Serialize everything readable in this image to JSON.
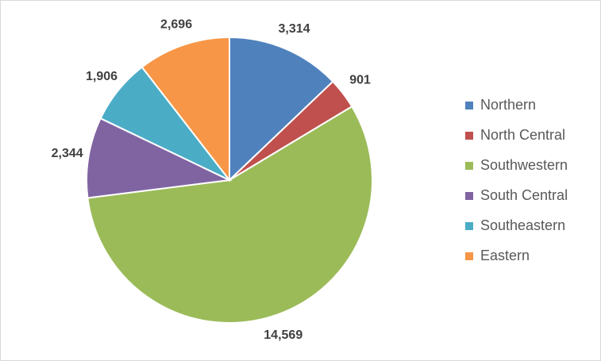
{
  "chart_data": {
    "type": "pie",
    "categories": [
      "Northern",
      "North Central",
      "Southwestern",
      "South Central",
      "Southeastern",
      "Eastern"
    ],
    "values": [
      3314,
      901,
      14569,
      2344,
      1906,
      2696
    ],
    "value_labels": [
      "3,314",
      "901",
      "14,569",
      "2,344",
      "1,906",
      "2,696"
    ],
    "colors": [
      "#4f81bd",
      "#c0504d",
      "#9bbb59",
      "#8064a2",
      "#4bacc6",
      "#f79646"
    ],
    "legend": "right"
  }
}
